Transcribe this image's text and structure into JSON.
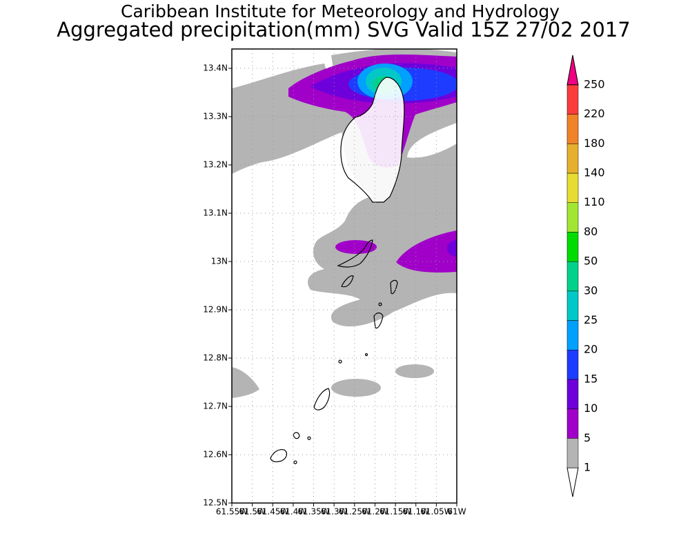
{
  "title": "Caribbean Institute for Meteorology and Hydrology",
  "subtitle": "Aggregated precipitation(mm) SVG Valid 15Z 27/02 2017",
  "map": {
    "lat_range": [
      12.5,
      13.44
    ],
    "lon_range": [
      61.55,
      61
    ],
    "lat_ticks": [
      {
        "value": 12.5,
        "label": "12.5N"
      },
      {
        "value": 12.6,
        "label": "12.6N"
      },
      {
        "value": 12.7,
        "label": "12.7N"
      },
      {
        "value": 12.8,
        "label": "12.8N"
      },
      {
        "value": 12.9,
        "label": "12.9N"
      },
      {
        "value": 13,
        "label": "13N"
      },
      {
        "value": 13.1,
        "label": "13.1N"
      },
      {
        "value": 13.2,
        "label": "13.2N"
      },
      {
        "value": 13.3,
        "label": "13.3N"
      },
      {
        "value": 13.4,
        "label": "13.4N"
      }
    ],
    "lon_ticks": [
      {
        "value": 61.55,
        "label": "61.55W"
      },
      {
        "value": 61.5,
        "label": "61.5W"
      },
      {
        "value": 61.45,
        "label": "61.45W"
      },
      {
        "value": 61.4,
        "label": "61.4W"
      },
      {
        "value": 61.35,
        "label": "61.35W"
      },
      {
        "value": 61.3,
        "label": "61.3W"
      },
      {
        "value": 61.25,
        "label": "61.25W"
      },
      {
        "value": 61.2,
        "label": "61.2W"
      },
      {
        "value": 61.15,
        "label": "61.15W"
      },
      {
        "value": 61.1,
        "label": "61.1W"
      },
      {
        "value": 61.05,
        "label": "61.05W"
      },
      {
        "value": 61,
        "label": "61W"
      }
    ]
  },
  "legend": {
    "levels": [
      1,
      5,
      10,
      15,
      20,
      25,
      30,
      50,
      80,
      110,
      140,
      180,
      220,
      250
    ],
    "colors": [
      "#ffffff",
      "#b4b4b4",
      "#a000c8",
      "#6e00dc",
      "#1e3cff",
      "#00a0ff",
      "#00c8c8",
      "#00d28c",
      "#00dc00",
      "#a0e632",
      "#e6dc32",
      "#e6af2d",
      "#f08228",
      "#fa3c3c",
      "#f00082"
    ]
  }
}
